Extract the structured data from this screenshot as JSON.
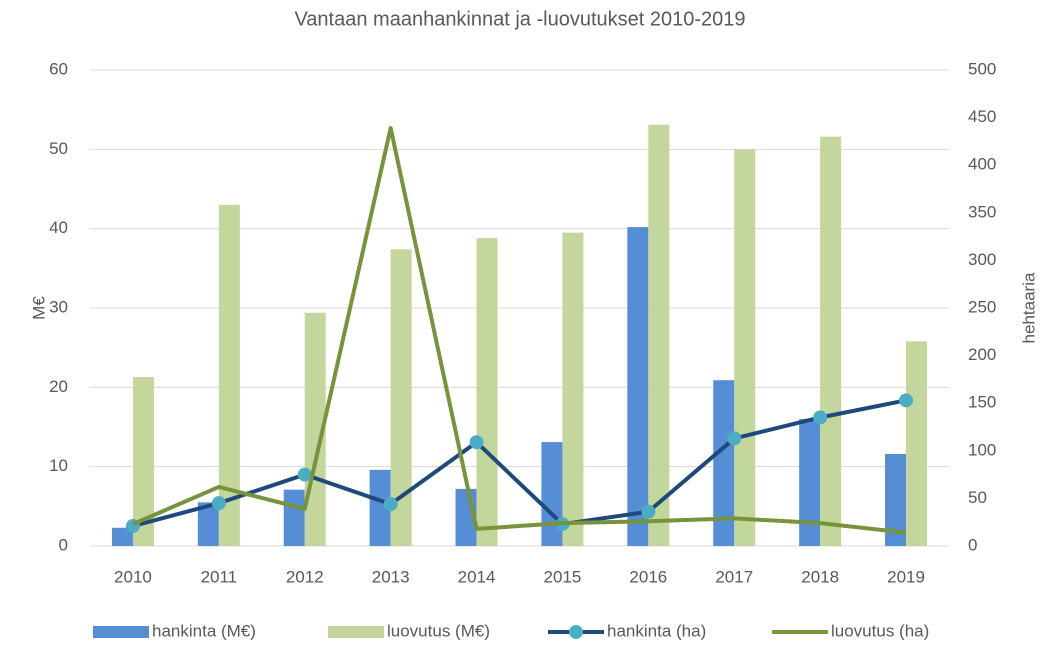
{
  "chart_data": {
    "type": "bar_line",
    "title": "Vantaan maanhankinnat ja -luovutukset 2010-2019",
    "y_label": "M€",
    "y2_label": "hehtaaria",
    "categories": [
      "2010",
      "2011",
      "2012",
      "2013",
      "2014",
      "2015",
      "2016",
      "2017",
      "2018",
      "2019"
    ],
    "series": [
      {
        "name": "hankinta (M€)",
        "kind": "bar",
        "color": "#558ed5",
        "values": [
          2.3,
          5.5,
          7.1,
          9.6,
          7.2,
          13.1,
          40.2,
          20.9,
          16,
          11.6
        ]
      },
      {
        "name": "luovutus (M€)",
        "kind": "bar",
        "color": "#c3d69b",
        "values": [
          21.3,
          43,
          29.4,
          37.4,
          38.8,
          39.5,
          53.1,
          50,
          51.6,
          25.8
        ]
      },
      {
        "name": "hankinta (ha)",
        "kind": "line",
        "axis": "y2",
        "color": "#1f497d",
        "marker_color": "#4bacc6",
        "values": [
          21,
          45,
          75,
          44,
          109,
          23,
          36,
          113,
          135,
          153
        ]
      },
      {
        "name": "luovutus (ha)",
        "kind": "line",
        "axis": "y2",
        "color": "#77933c",
        "values": [
          23,
          62,
          39,
          439,
          18,
          24,
          26,
          29,
          24,
          14
        ]
      }
    ],
    "ylim": [
      0,
      60
    ],
    "yticks": [
      0,
      10,
      20,
      30,
      40,
      50,
      60
    ],
    "y2lim": [
      0,
      500
    ],
    "y2ticks": [
      0,
      50,
      100,
      150,
      200,
      250,
      300,
      350,
      400,
      450,
      500
    ],
    "grid": true,
    "legend": "bottom"
  }
}
